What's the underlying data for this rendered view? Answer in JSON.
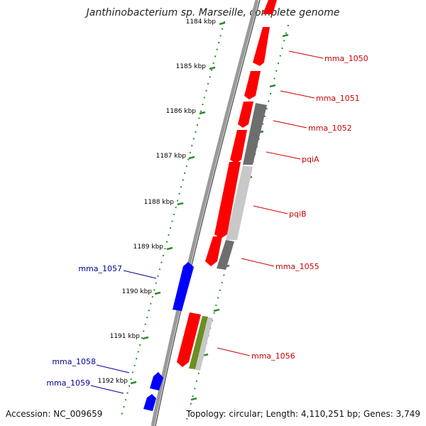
{
  "title": "Janthinobacterium sp. Marseille, complete genome",
  "footer": {
    "accession": "Accession: NC_009659",
    "topology": "Topology: circular; Length: 4,110,251 bp; Genes: 3,749"
  },
  "ticks": [
    "1184 kbp",
    "1185 kbp",
    "1186 kbp",
    "1187 kbp",
    "1188 kbp",
    "1189 kbp",
    "1190 kbp",
    "1191 kbp",
    "1192 kbp"
  ],
  "gene_labels": [
    "mma_1050",
    "mma_1051",
    "mma_1052",
    "pqiA",
    "pqiB",
    "mma_1055",
    "mma_1056",
    "mma_1057",
    "mma_1058",
    "mma_1059"
  ],
  "colors": {
    "forward": "#ff0000",
    "reverse": "#0000ff",
    "gray_dark": "#6e6e6e",
    "gray_light": "#c8c8c8",
    "olive": "#6b8e23",
    "backbone": "#808080",
    "tick": "#2e8b2e",
    "label_red": "#cc0000",
    "label_blue": "#000099"
  }
}
